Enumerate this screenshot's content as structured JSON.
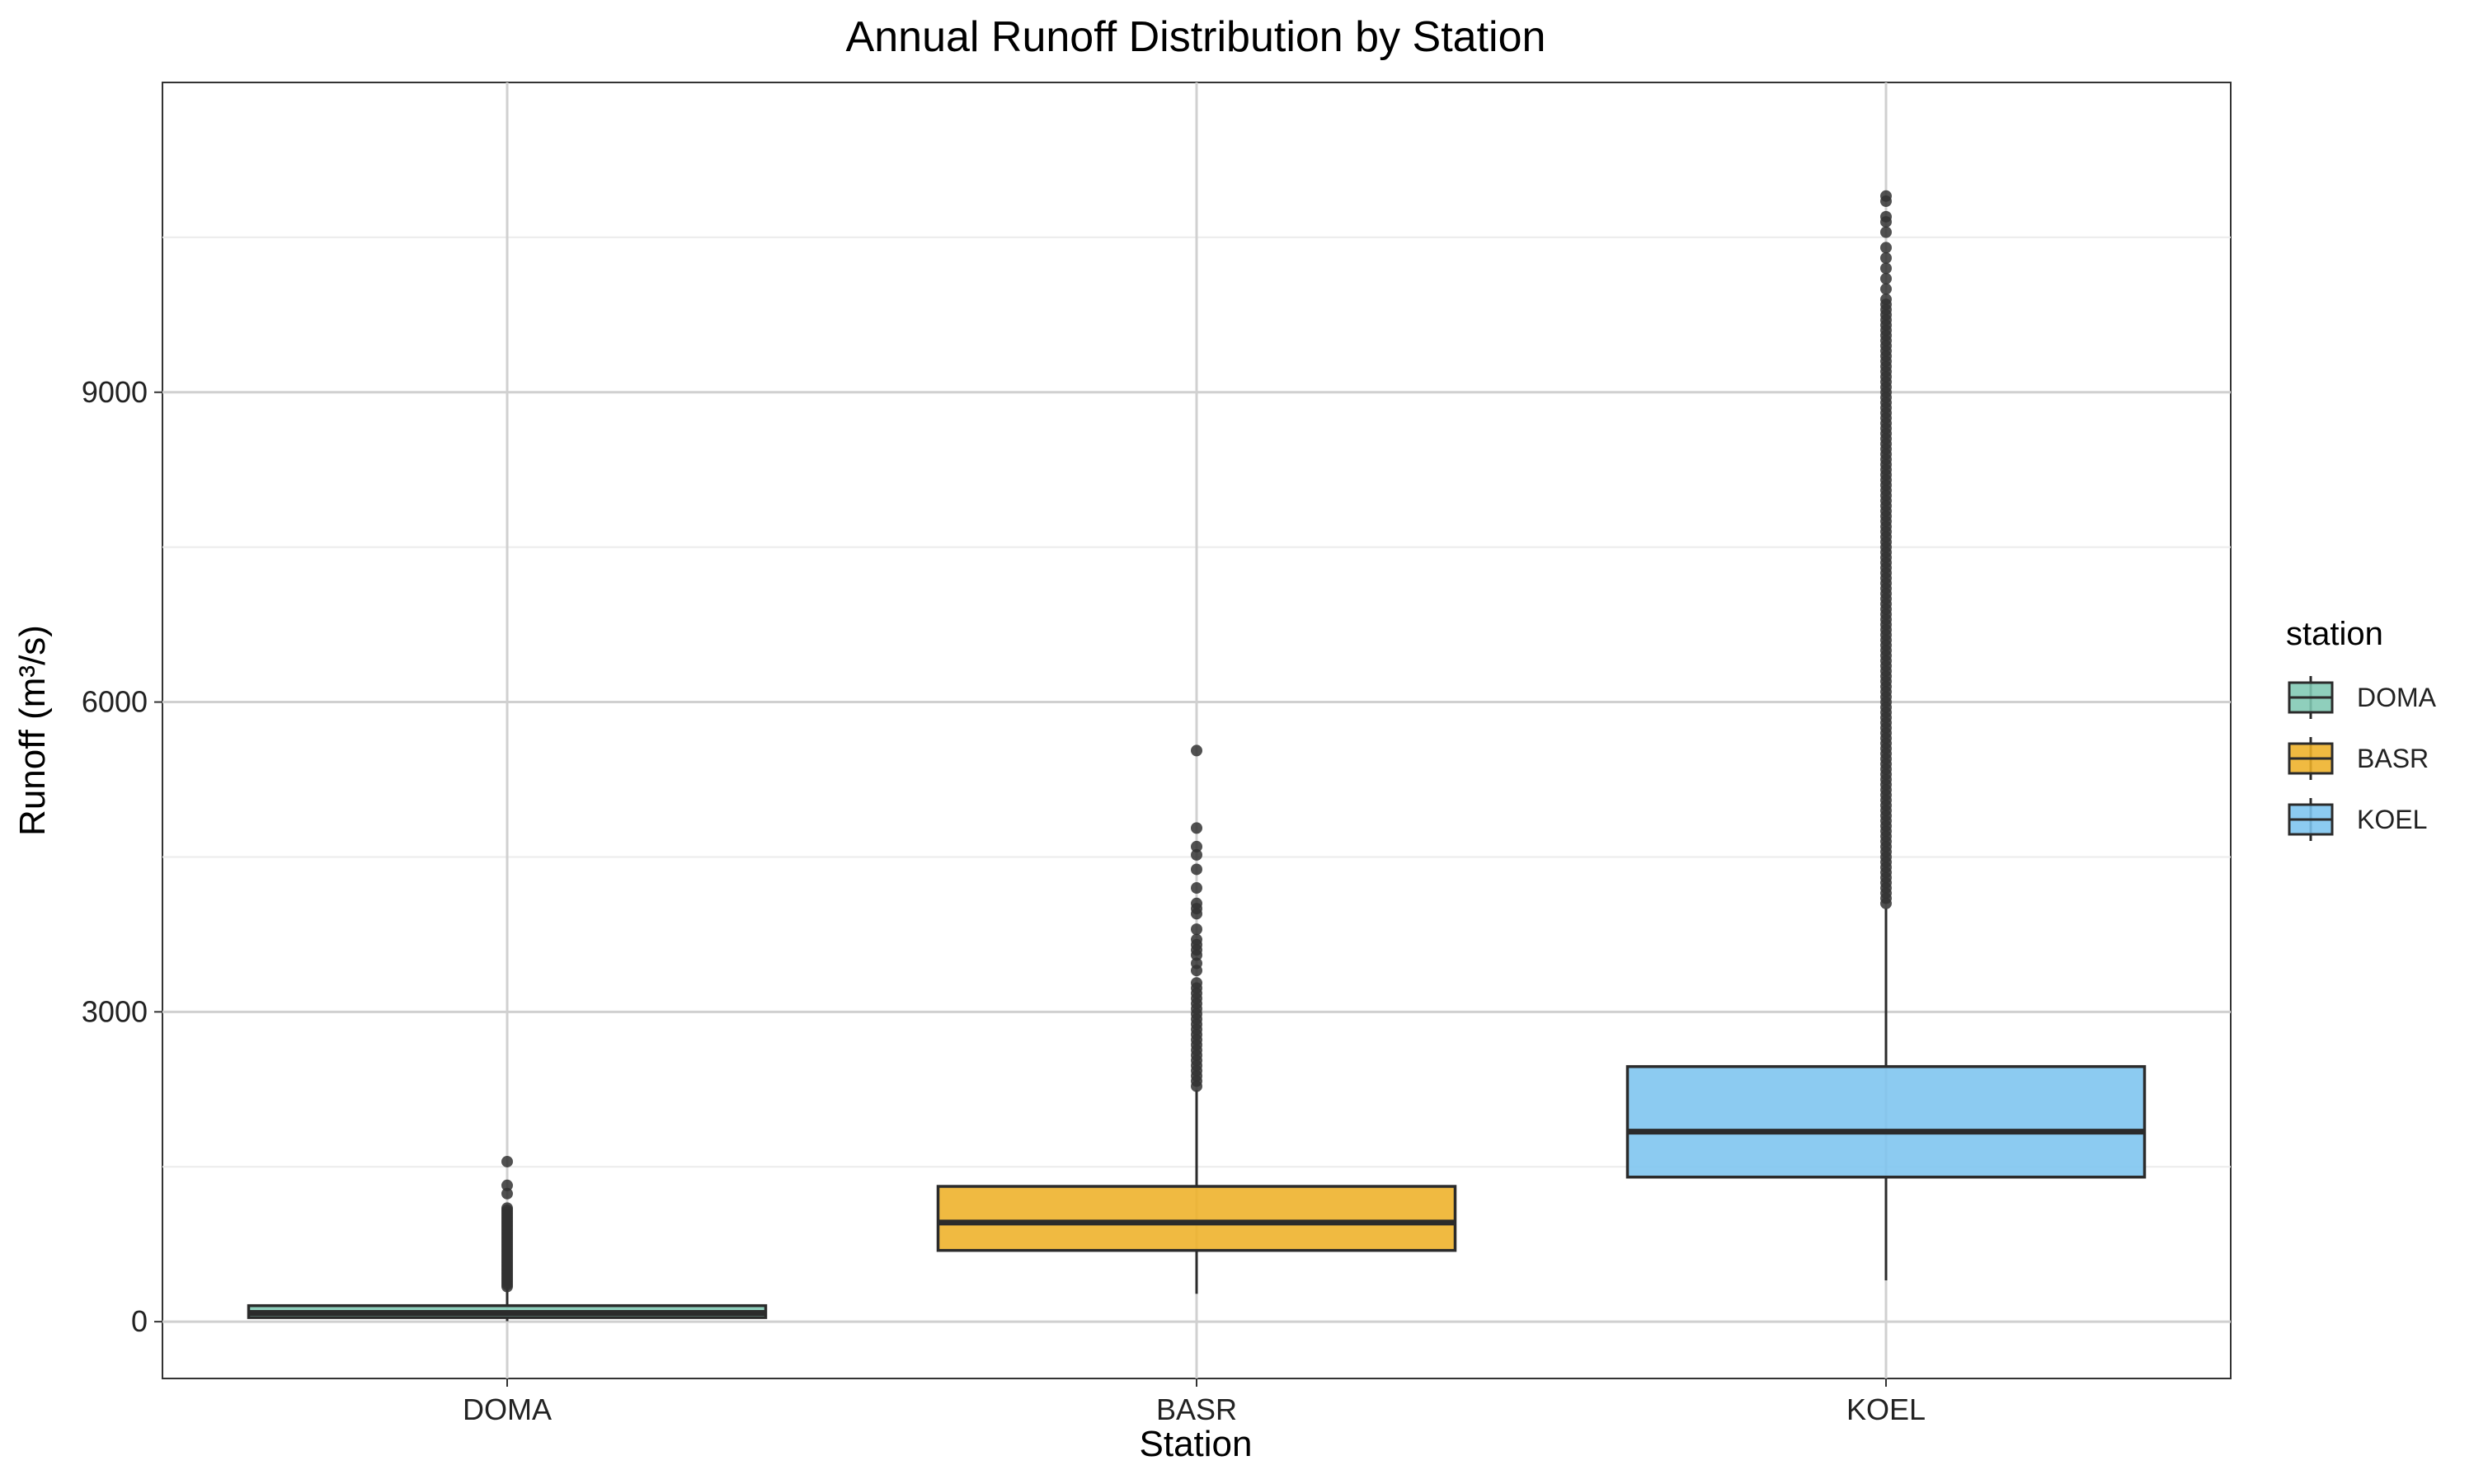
{
  "chart_data": {
    "type": "boxplot",
    "title": "Annual Runoff Distribution by Station",
    "xlabel": "Station",
    "ylabel": "Runoff (m³/s)",
    "ylim": [
      -550,
      12000
    ],
    "yticks": [
      0,
      3000,
      6000,
      9000
    ],
    "yticklabels": [
      "0",
      "3000",
      "6000",
      "9000"
    ],
    "categories": [
      "DOMA",
      "BASR",
      "KOEL"
    ],
    "grid": true,
    "legend": {
      "title": "station",
      "placement": "right",
      "entries": [
        "DOMA",
        "BASR",
        "KOEL"
      ]
    },
    "series": [
      {
        "name": "DOMA",
        "color": "#7fc8b3",
        "whisker_low": 5,
        "q1": 40,
        "median": 85,
        "q3": 155,
        "whisker_high": 330,
        "outliers": [
          340,
          360,
          380,
          400,
          420,
          440,
          460,
          480,
          500,
          520,
          540,
          560,
          580,
          600,
          620,
          640,
          660,
          680,
          700,
          720,
          740,
          760,
          780,
          800,
          820,
          840,
          860,
          880,
          900,
          920,
          940,
          960,
          980,
          1000,
          1020,
          1040,
          1060,
          1080,
          1100,
          1240,
          1320,
          1550
        ]
      },
      {
        "name": "BASR",
        "color": "#eeb027",
        "whisker_low": 270,
        "q1": 690,
        "median": 960,
        "q3": 1310,
        "whisker_high": 2240,
        "outliers": [
          2280,
          2330,
          2380,
          2430,
          2480,
          2530,
          2580,
          2630,
          2680,
          2730,
          2780,
          2830,
          2880,
          2930,
          2980,
          3030,
          3080,
          3130,
          3180,
          3230,
          3280,
          3400,
          3470,
          3550,
          3600,
          3650,
          3700,
          3800,
          3950,
          4000,
          4050,
          4200,
          4380,
          4520,
          4600,
          4780,
          5530
        ]
      },
      {
        "name": "KOEL",
        "color": "#7cc4ef",
        "whisker_low": 400,
        "q1": 1400,
        "median": 1840,
        "q3": 2470,
        "whisker_high": 4000,
        "outliers": [
          4050,
          4100,
          4150,
          4200,
          4250,
          4300,
          4350,
          4400,
          4450,
          4500,
          4550,
          4600,
          4650,
          4700,
          4750,
          4800,
          4850,
          4900,
          4950,
          5000,
          5050,
          5100,
          5150,
          5200,
          5250,
          5300,
          5350,
          5400,
          5450,
          5500,
          5550,
          5600,
          5650,
          5700,
          5750,
          5800,
          5850,
          5900,
          5950,
          6000,
          6050,
          6100,
          6150,
          6200,
          6250,
          6300,
          6350,
          6400,
          6450,
          6500,
          6550,
          6600,
          6650,
          6700,
          6750,
          6800,
          6850,
          6900,
          6950,
          7000,
          7050,
          7100,
          7150,
          7200,
          7250,
          7300,
          7350,
          7400,
          7450,
          7500,
          7550,
          7600,
          7650,
          7700,
          7750,
          7800,
          7850,
          7900,
          7950,
          8000,
          8050,
          8100,
          8150,
          8200,
          8250,
          8300,
          8350,
          8400,
          8450,
          8500,
          8550,
          8600,
          8650,
          8700,
          8750,
          8800,
          8850,
          8900,
          8950,
          9000,
          9050,
          9100,
          9150,
          9200,
          9250,
          9300,
          9350,
          9400,
          9450,
          9500,
          9550,
          9600,
          9650,
          9700,
          9750,
          9800,
          9850,
          9900,
          10000,
          10100,
          10200,
          10300,
          10400,
          10550,
          10650,
          10700,
          10850,
          10900
        ]
      }
    ]
  }
}
